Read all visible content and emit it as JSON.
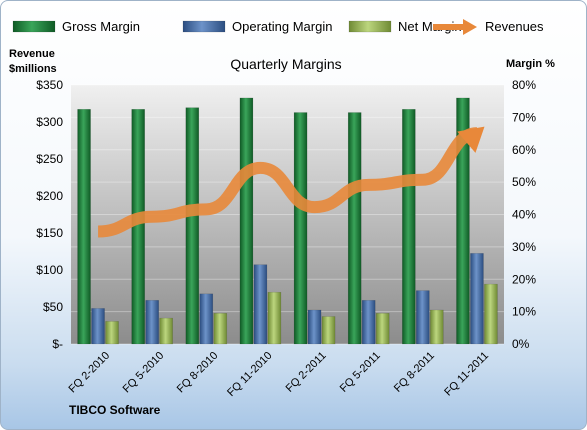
{
  "chart_data": {
    "type": "bar",
    "title": "Quarterly Margins",
    "ylabel_left": "Revenue $millions",
    "ylabel_right": "Margin %",
    "footer": "TIBCO Software",
    "categories": [
      "FQ 2-2010",
      "FQ 5-2010",
      "FQ 8-2010",
      "FQ 11-2010",
      "FQ 2-2011",
      "FQ 5-2011",
      "FQ 8-2011",
      "FQ 11-2011"
    ],
    "left_axis": {
      "min": 0,
      "max": 350,
      "step": 50,
      "tick_labels": [
        "$-",
        "$50",
        "$100",
        "$150",
        "$200",
        "$250",
        "$300",
        "$350"
      ]
    },
    "right_axis": {
      "min": 0,
      "max": 80,
      "step": 10,
      "tick_labels": [
        "0%",
        "10%",
        "20%",
        "30%",
        "40%",
        "50%",
        "60%",
        "70%",
        "80%"
      ]
    },
    "series": [
      {
        "name": "Gross Margin",
        "axis": "right",
        "unit": "%",
        "color": "#1e7b3a",
        "values": [
          72.5,
          72.5,
          73,
          76,
          71.5,
          71.5,
          72.5,
          76
        ]
      },
      {
        "name": "Operating Margin",
        "axis": "right",
        "unit": "%",
        "color": "#3f6aa8",
        "values": [
          11,
          13.5,
          15.5,
          24.5,
          10.5,
          13.5,
          16.5,
          28
        ]
      },
      {
        "name": "Net Margin",
        "axis": "right",
        "unit": "%",
        "color": "#9bbb59",
        "values": [
          7,
          8,
          9.5,
          16,
          8.5,
          9.5,
          10.5,
          18.5
        ]
      },
      {
        "name": "Revenues",
        "axis": "left",
        "unit": "$M",
        "type": "line",
        "color": "#e8883a",
        "values": [
          152,
          172,
          182,
          238,
          185,
          215,
          222,
          285
        ]
      }
    ],
    "legend_position": "top",
    "grid": true
  }
}
